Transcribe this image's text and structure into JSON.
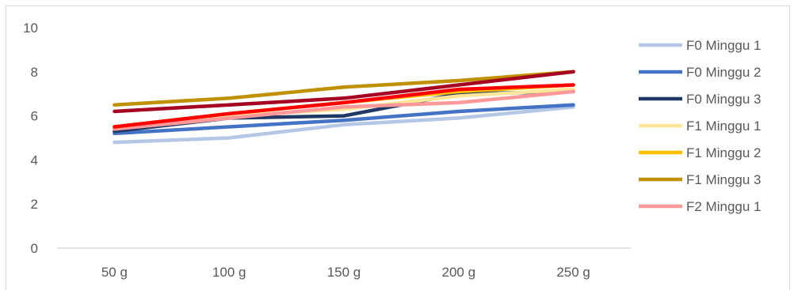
{
  "chart_data": {
    "type": "line",
    "title": "",
    "xlabel": "",
    "ylabel": "",
    "categories": [
      "50 g",
      "100 g",
      "150 g",
      "200 g",
      "250 g"
    ],
    "ylim": [
      0,
      10
    ],
    "yticks": [
      0,
      2,
      4,
      6,
      8,
      10
    ],
    "grid": false,
    "legend_position": "right",
    "series": [
      {
        "name": "F0 Minggu 1",
        "color": "#b4c7e7",
        "values": [
          4.8,
          5.0,
          5.6,
          5.9,
          6.4
        ]
      },
      {
        "name": "F0 Minggu 2",
        "color": "#4472c4",
        "values": [
          5.2,
          5.5,
          5.8,
          6.2,
          6.5
        ]
      },
      {
        "name": "F0 Minggu 3",
        "color": "#203864",
        "values": [
          5.3,
          5.9,
          6.0,
          7.0,
          7.1
        ]
      },
      {
        "name": "F1 Minggu 1",
        "color": "#ffe699",
        "values": [
          5.4,
          6.0,
          6.3,
          6.9,
          7.2
        ]
      },
      {
        "name": "F1 Minggu 2",
        "color": "#ffc000",
        "values": [
          5.5,
          6.1,
          6.6,
          7.1,
          7.4
        ]
      },
      {
        "name": "F1 Minggu 3",
        "color": "#bf9000",
        "values": [
          6.5,
          6.8,
          7.3,
          7.6,
          8.0
        ]
      },
      {
        "name": "F2 Minggu 1",
        "color": "#ff9999",
        "values": [
          5.4,
          5.9,
          6.4,
          6.6,
          7.1
        ]
      },
      {
        "name": "",
        "color": "#ff0000",
        "values": [
          5.5,
          6.1,
          6.6,
          7.2,
          7.4
        ]
      },
      {
        "name": "",
        "color": "#a50021",
        "values": [
          6.2,
          6.5,
          6.8,
          7.4,
          8.0
        ]
      }
    ]
  }
}
